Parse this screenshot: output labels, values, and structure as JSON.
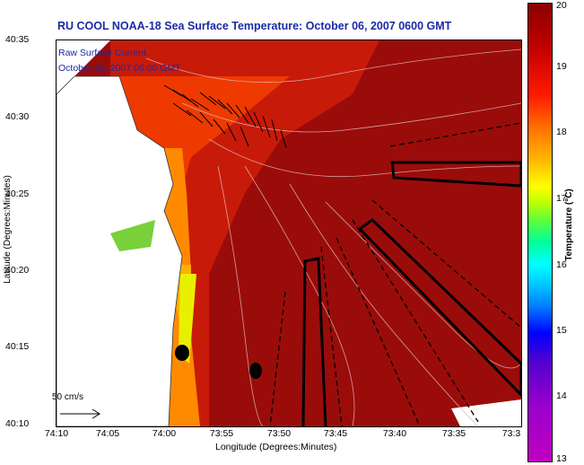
{
  "header": {
    "title": "RU COOL  NOAA-18  Sea Surface Temperature:  October 06, 2007 0600 GMT"
  },
  "legend": {
    "line1": "Raw Surface Current",
    "line2": "October 06, 2007 06:00 GMT",
    "scale_label": "50 cm/s"
  },
  "axes": {
    "y_label": "Latitude (Degrees:Minutes)",
    "x_label": "Longitude (Degrees:Minutes)",
    "y_ticks": [
      "40:35",
      "40:30",
      "40:25",
      "40:20",
      "40:15",
      "40:10"
    ],
    "x_ticks": [
      "74:10",
      "74:05",
      "74:00",
      "73:55",
      "73:50",
      "73:45",
      "73:40",
      "73:35",
      "73:3"
    ]
  },
  "colorbar": {
    "label": "Temperature (°C)",
    "ticks": [
      "20",
      "19",
      "18",
      "17",
      "16",
      "15",
      "14",
      "13"
    ],
    "range": [
      13,
      20
    ]
  },
  "colors": {
    "title": "#1a2aa6",
    "deep_red": "#8b0a0a",
    "land": "#ffffff"
  }
}
